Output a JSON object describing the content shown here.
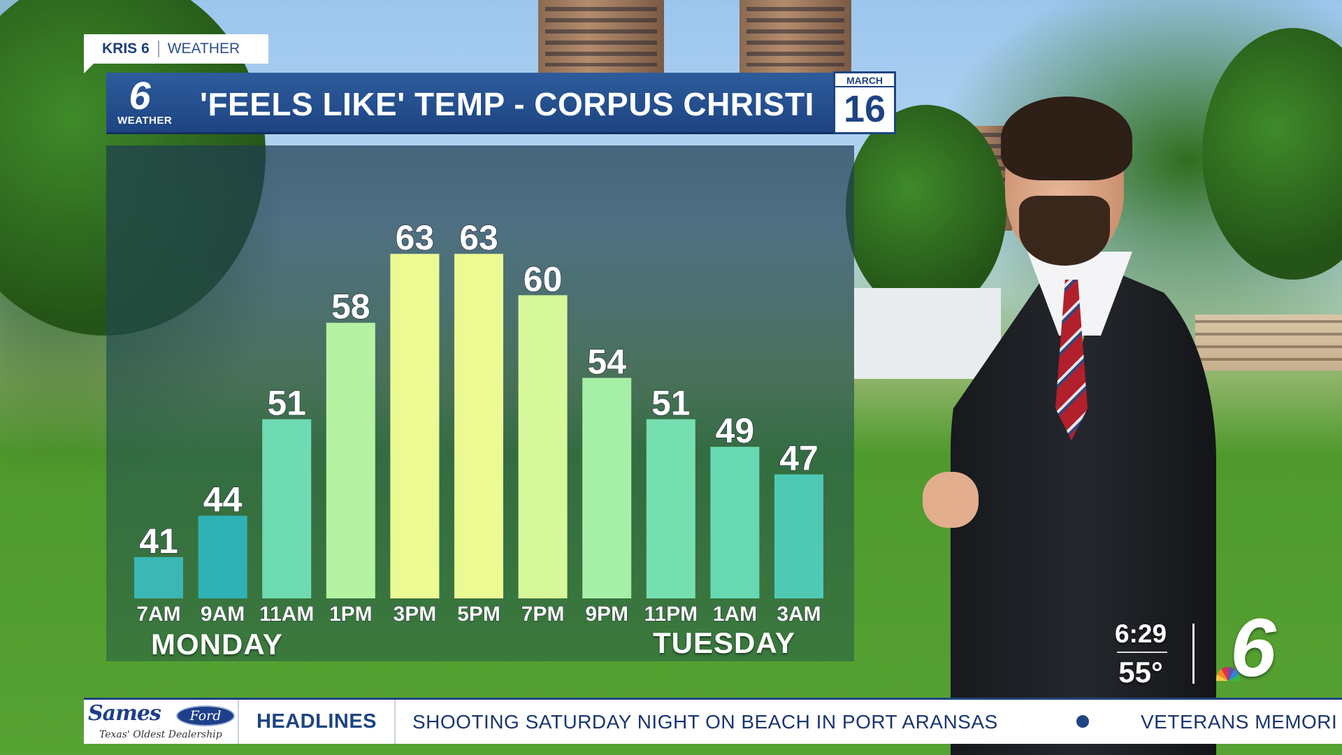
{
  "branding": {
    "station": "KRIS 6",
    "section": "WEATHER",
    "logo_number": "6",
    "logo_label": "WEATHER"
  },
  "header": {
    "title": "'FEELS LIKE' TEMP  - CORPUS CHRISTI",
    "month": "MARCH",
    "day": "16"
  },
  "day_labels": {
    "first": "MONDAY",
    "second": "TUESDAY"
  },
  "bug": {
    "time": "6:29",
    "temp": "55°",
    "logo_number": "6"
  },
  "ticker": {
    "sponsor_name": "Sames",
    "sponsor_brand": "Ford",
    "sponsor_tagline": "Texas' Oldest Dealership",
    "category": "HEADLINES",
    "headline_1": "SHOOTING SATURDAY NIGHT ON BEACH IN PORT ARANSAS",
    "headline_2": "VETERANS MEMORI"
  },
  "colors": {
    "header_blue": "#1e4482",
    "bar_low": "#3bb7b4",
    "bar_mid": "#72dcb0",
    "bar_warm": "#b6f3a0",
    "bar_hot": "#ecfa94"
  },
  "icons": [
    "kris6-logo-icon",
    "nbc6-logo-icon",
    "peacock-icon"
  ],
  "chart_data": {
    "type": "bar",
    "title": "'FEELS LIKE' TEMP  - CORPUS CHRISTI",
    "categories": [
      "7AM",
      "9AM",
      "11AM",
      "1PM",
      "3PM",
      "5PM",
      "7PM",
      "9PM",
      "11PM",
      "1AM",
      "3AM"
    ],
    "values": [
      41,
      44,
      51,
      58,
      63,
      63,
      60,
      54,
      51,
      49,
      47
    ],
    "bar_colors": [
      "#3bb7b4",
      "#2fb2b6",
      "#6fdbb2",
      "#b5f3a2",
      "#ecfa94",
      "#ecfa94",
      "#d6f89a",
      "#a6efa6",
      "#76dfb0",
      "#66d9b2",
      "#4fc9b4"
    ],
    "ylim": [
      38,
      66
    ],
    "grid": false,
    "legend": "none",
    "xlabel": "",
    "ylabel": ""
  }
}
